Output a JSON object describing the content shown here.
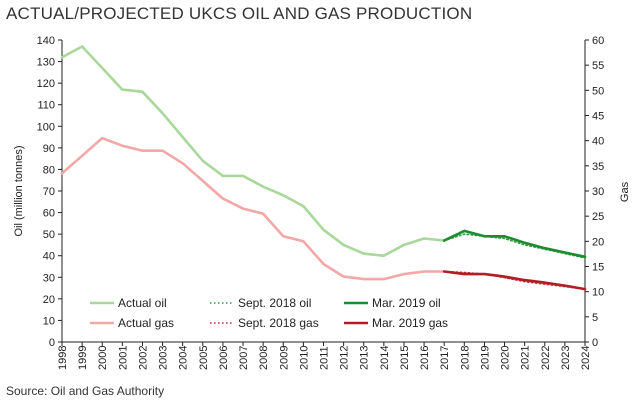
{
  "title": "ACTUAL/PROJECTED UKCS OIL AND GAS PRODUCTION",
  "source": "Source: Oil and Gas Authority",
  "chart_data": {
    "type": "line",
    "title": "ACTUAL/PROJECTED UKCS OIL AND GAS PRODUCTION",
    "xlabel": "",
    "ylabel": "Oil (million tonnes)",
    "y2label": "Gas",
    "x": [
      "1998",
      "1999",
      "2000",
      "2001",
      "2002",
      "2003",
      "2004",
      "2005",
      "2006",
      "2007",
      "2008",
      "2009",
      "2010",
      "2011",
      "2012",
      "2013",
      "2014",
      "2015",
      "2016",
      "2017",
      "2018",
      "2019",
      "2020",
      "2021",
      "2022",
      "2023",
      "2024"
    ],
    "ylim": [
      0,
      140
    ],
    "yticks": [
      0,
      10,
      20,
      30,
      40,
      50,
      60,
      70,
      80,
      90,
      100,
      110,
      120,
      130,
      140
    ],
    "y2lim": [
      0,
      60
    ],
    "y2ticks": [
      0,
      5,
      10,
      15,
      20,
      25,
      30,
      35,
      40,
      45,
      50,
      55,
      60
    ],
    "grid": false,
    "legend_position": "bottom-inside",
    "series": [
      {
        "name": "Actual oil",
        "axis": "left",
        "color": "#a8d89a",
        "style": "solid",
        "x": [
          "1998",
          "1999",
          "2000",
          "2001",
          "2002",
          "2003",
          "2004",
          "2005",
          "2006",
          "2007",
          "2008",
          "2009",
          "2010",
          "2011",
          "2012",
          "2013",
          "2014",
          "2015",
          "2016",
          "2017"
        ],
        "values": [
          132,
          137,
          127,
          117,
          116,
          106,
          95,
          84,
          77,
          77,
          72,
          68,
          63,
          52,
          45,
          41,
          40,
          45,
          48,
          47
        ]
      },
      {
        "name": "Actual gas",
        "axis": "right",
        "color": "#f4a7a7",
        "style": "solid",
        "x": [
          "1998",
          "1999",
          "2000",
          "2001",
          "2002",
          "2003",
          "2004",
          "2005",
          "2006",
          "2007",
          "2008",
          "2009",
          "2010",
          "2011",
          "2012",
          "2013",
          "2014",
          "2015",
          "2016",
          "2017"
        ],
        "values": [
          33.5,
          37,
          40.5,
          39,
          38,
          38,
          35.5,
          32,
          28.5,
          26.5,
          25.5,
          21,
          20,
          15.5,
          13,
          12.5,
          12.5,
          13.5,
          14,
          14
        ]
      },
      {
        "name": "Sept. 2018 oil",
        "axis": "left",
        "color": "#2e9e3e",
        "style": "dotted",
        "x": [
          "2017",
          "2018",
          "2019",
          "2020",
          "2021",
          "2022",
          "2023",
          "2024"
        ],
        "values": [
          47,
          50,
          49,
          48,
          45,
          43,
          41,
          39
        ]
      },
      {
        "name": "Sept. 2018 gas",
        "axis": "right",
        "color": "#c0282e",
        "style": "dotted",
        "x": [
          "2017",
          "2018",
          "2019",
          "2020",
          "2021",
          "2022",
          "2023",
          "2024"
        ],
        "values": [
          14,
          13.8,
          13.5,
          12.8,
          12,
          11.5,
          11,
          10.5
        ]
      },
      {
        "name": "Mar. 2019 oil",
        "axis": "left",
        "color": "#1e8c2e",
        "style": "solid",
        "x": [
          "2017",
          "2018",
          "2019",
          "2020",
          "2021",
          "2022",
          "2023",
          "2024"
        ],
        "values": [
          47,
          51.5,
          49,
          49,
          46,
          43.5,
          41.5,
          39.5
        ]
      },
      {
        "name": "Mar. 2019 gas",
        "axis": "right",
        "color": "#b01e24",
        "style": "solid",
        "x": [
          "2017",
          "2018",
          "2019",
          "2020",
          "2021",
          "2022",
          "2023",
          "2024"
        ],
        "values": [
          14,
          13.5,
          13.5,
          13,
          12.3,
          11.8,
          11.2,
          10.5
        ]
      }
    ]
  }
}
